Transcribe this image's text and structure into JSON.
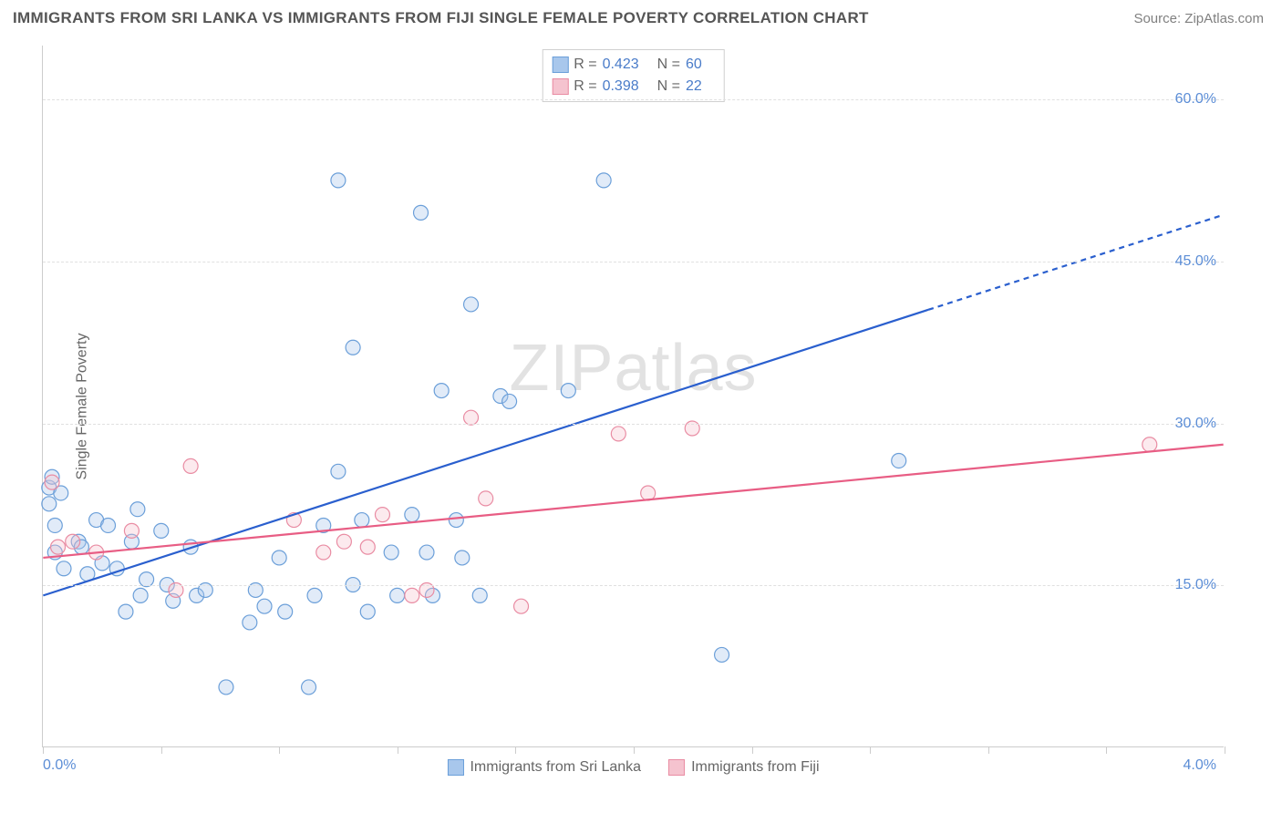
{
  "title": "IMMIGRANTS FROM SRI LANKA VS IMMIGRANTS FROM FIJI SINGLE FEMALE POVERTY CORRELATION CHART",
  "source": "Source: ZipAtlas.com",
  "watermark": "ZIPatlas",
  "ylabel": "Single Female Poverty",
  "chart": {
    "type": "scatter",
    "xlim": [
      0.0,
      4.0
    ],
    "ylim": [
      0.0,
      65.0
    ],
    "x_axis_min_label": "0.0%",
    "x_axis_max_label": "4.0%",
    "x_ticks": [
      0.0,
      0.4,
      0.8,
      1.2,
      1.6,
      2.0,
      2.4,
      2.8,
      3.2,
      3.6,
      4.0
    ],
    "y_gridlines": [
      15.0,
      30.0,
      45.0,
      60.0
    ],
    "y_gridline_labels": [
      "15.0%",
      "30.0%",
      "45.0%",
      "60.0%"
    ],
    "background_color": "#ffffff",
    "grid_color": "#e0e0e0",
    "axis_color": "#cccccc",
    "marker_radius": 8,
    "marker_stroke_width": 1.2,
    "marker_fill_opacity": 0.35,
    "trend_line_width": 2.2
  },
  "series": [
    {
      "name": "Immigrants from Sri Lanka",
      "color_fill": "#a8c7ec",
      "color_stroke": "#6b9fd9",
      "trend_color": "#2a5fce",
      "R": "0.423",
      "N": "60",
      "trend": {
        "x1": 0.0,
        "y1": 14.0,
        "x2": 3.0,
        "y2": 40.5,
        "x_extend": 4.0,
        "y_extend": 49.3
      },
      "points": [
        [
          0.02,
          22.5
        ],
        [
          0.02,
          24.0
        ],
        [
          0.03,
          25.0
        ],
        [
          0.04,
          18.0
        ],
        [
          0.04,
          20.5
        ],
        [
          0.06,
          23.5
        ],
        [
          0.07,
          16.5
        ],
        [
          0.12,
          19.0
        ],
        [
          0.13,
          18.5
        ],
        [
          0.15,
          16.0
        ],
        [
          0.18,
          21.0
        ],
        [
          0.2,
          17.0
        ],
        [
          0.22,
          20.5
        ],
        [
          0.25,
          16.5
        ],
        [
          0.28,
          12.5
        ],
        [
          0.3,
          19.0
        ],
        [
          0.32,
          22.0
        ],
        [
          0.33,
          14.0
        ],
        [
          0.35,
          15.5
        ],
        [
          0.4,
          20.0
        ],
        [
          0.42,
          15.0
        ],
        [
          0.44,
          13.5
        ],
        [
          0.5,
          18.5
        ],
        [
          0.52,
          14.0
        ],
        [
          0.55,
          14.5
        ],
        [
          0.62,
          5.5
        ],
        [
          0.7,
          11.5
        ],
        [
          0.72,
          14.5
        ],
        [
          0.75,
          13.0
        ],
        [
          0.8,
          17.5
        ],
        [
          0.82,
          12.5
        ],
        [
          0.9,
          5.5
        ],
        [
          0.92,
          14.0
        ],
        [
          0.95,
          20.5
        ],
        [
          1.0,
          52.5
        ],
        [
          1.0,
          25.5
        ],
        [
          1.05,
          37.0
        ],
        [
          1.05,
          15.0
        ],
        [
          1.08,
          21.0
        ],
        [
          1.1,
          12.5
        ],
        [
          1.18,
          18.0
        ],
        [
          1.2,
          14.0
        ],
        [
          1.25,
          21.5
        ],
        [
          1.28,
          49.5
        ],
        [
          1.3,
          18.0
        ],
        [
          1.32,
          14.0
        ],
        [
          1.35,
          33.0
        ],
        [
          1.4,
          21.0
        ],
        [
          1.42,
          17.5
        ],
        [
          1.45,
          41.0
        ],
        [
          1.48,
          14.0
        ],
        [
          1.55,
          32.5
        ],
        [
          1.58,
          32.0
        ],
        [
          1.78,
          33.0
        ],
        [
          1.9,
          52.5
        ],
        [
          2.3,
          8.5
        ],
        [
          2.9,
          26.5
        ]
      ]
    },
    {
      "name": "Immigrants from Fiji",
      "color_fill": "#f5c3cf",
      "color_stroke": "#e98ca3",
      "trend_color": "#e85d84",
      "R": "0.398",
      "N": "22",
      "trend": {
        "x1": 0.0,
        "y1": 17.5,
        "x2": 4.0,
        "y2": 28.0,
        "x_extend": 4.0,
        "y_extend": 28.0
      },
      "points": [
        [
          0.03,
          24.5
        ],
        [
          0.05,
          18.5
        ],
        [
          0.1,
          19.0
        ],
        [
          0.18,
          18.0
        ],
        [
          0.3,
          20.0
        ],
        [
          0.45,
          14.5
        ],
        [
          0.5,
          26.0
        ],
        [
          0.85,
          21.0
        ],
        [
          0.95,
          18.0
        ],
        [
          1.02,
          19.0
        ],
        [
          1.1,
          18.5
        ],
        [
          1.15,
          21.5
        ],
        [
          1.25,
          14.0
        ],
        [
          1.3,
          14.5
        ],
        [
          1.45,
          30.5
        ],
        [
          1.5,
          23.0
        ],
        [
          1.62,
          13.0
        ],
        [
          1.95,
          29.0
        ],
        [
          2.05,
          23.5
        ],
        [
          2.2,
          29.5
        ],
        [
          3.75,
          28.0
        ]
      ]
    }
  ],
  "legend_top_labels": {
    "R": "R =",
    "N": "N ="
  },
  "bottom_legend": [
    {
      "label": "Immigrants from Sri Lanka",
      "fill": "#a8c7ec",
      "stroke": "#6b9fd9"
    },
    {
      "label": "Immigrants from Fiji",
      "fill": "#f5c3cf",
      "stroke": "#e98ca3"
    }
  ]
}
